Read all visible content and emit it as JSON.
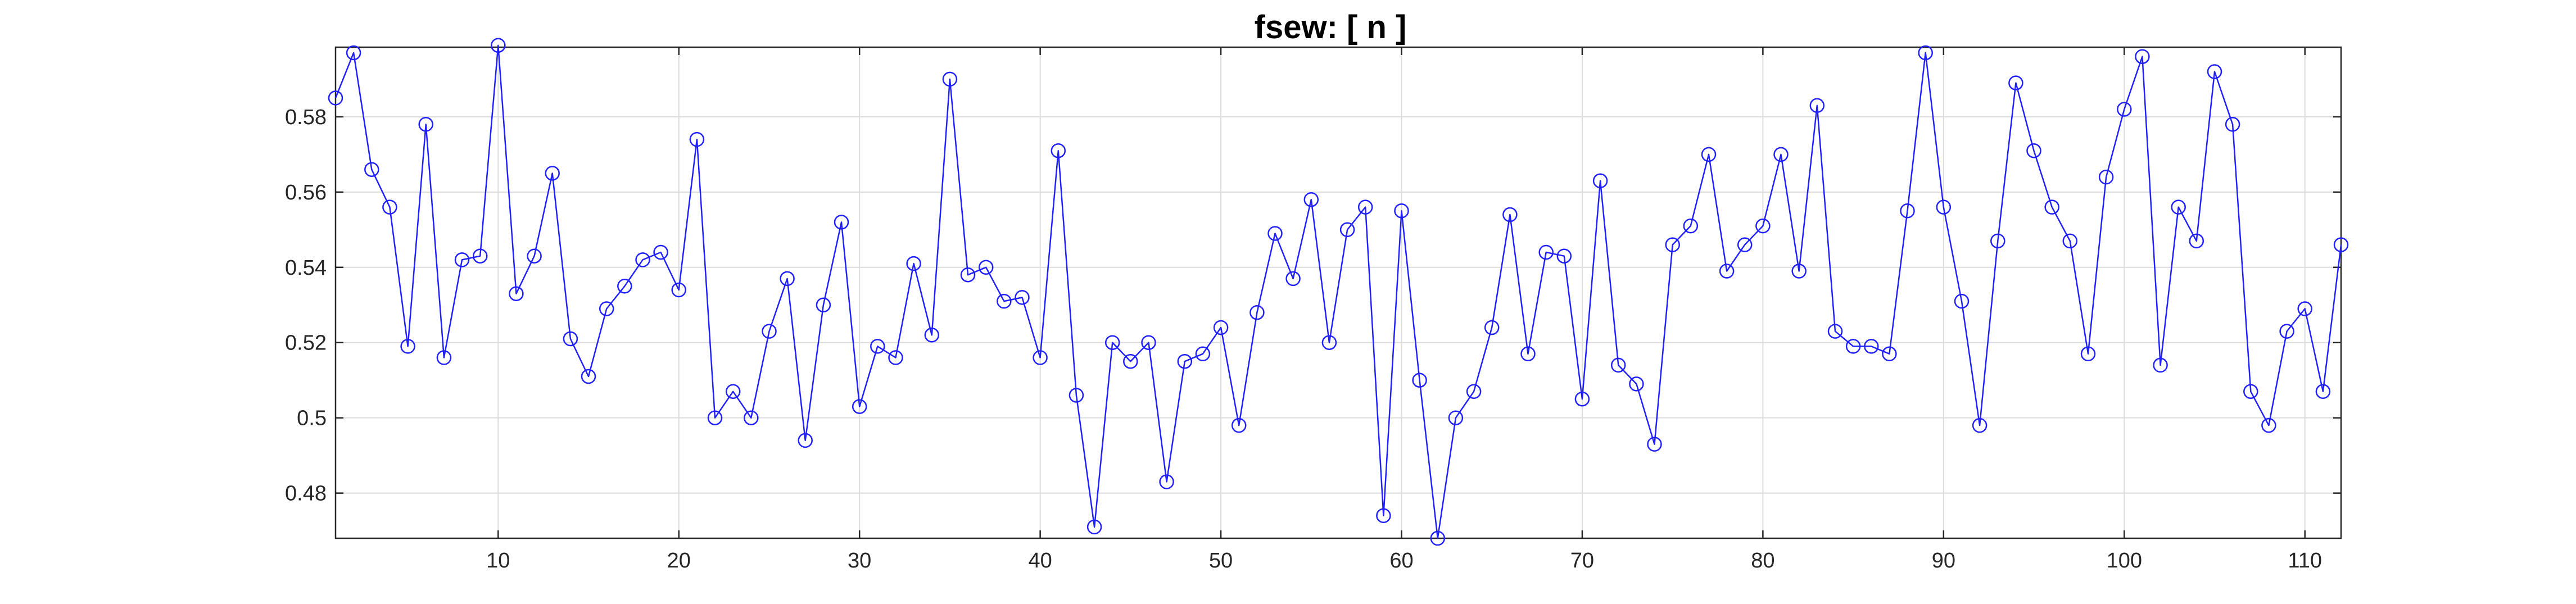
{
  "chart_data": {
    "type": "line",
    "title": "fsew: [ n ]",
    "xlabel": "",
    "ylabel": "",
    "xlim": [
      1,
      112
    ],
    "ylim": [
      0.468,
      0.5985
    ],
    "x_ticks": [
      10,
      20,
      30,
      40,
      50,
      60,
      70,
      80,
      90,
      100,
      110
    ],
    "x_tick_labels": [
      "10",
      "20",
      "30",
      "40",
      "50",
      "60",
      "70",
      "80",
      "90",
      "100",
      "110"
    ],
    "y_ticks": [
      0.48,
      0.5,
      0.52,
      0.54,
      0.56,
      0.58
    ],
    "y_tick_labels": [
      "0.48",
      "0.5",
      "0.52",
      "0.54",
      "0.56",
      "0.58"
    ],
    "grid": true,
    "box": true,
    "marker": "circle",
    "color": "#1f1fff",
    "series": [
      {
        "values": [
          0.585,
          0.597,
          0.566,
          0.556,
          0.519,
          0.578,
          0.516,
          0.542,
          0.543,
          0.599,
          0.533,
          0.543,
          0.565,
          0.521,
          0.511,
          0.529,
          0.535,
          0.542,
          0.544,
          0.534,
          0.574,
          0.5,
          0.507,
          0.5,
          0.523,
          0.537,
          0.494,
          0.53,
          0.552,
          0.503,
          0.519,
          0.516,
          0.541,
          0.522,
          0.59,
          0.538,
          0.54,
          0.531,
          0.532,
          0.516,
          0.571,
          0.506,
          0.471,
          0.52,
          0.515,
          0.52,
          0.483,
          0.515,
          0.517,
          0.524,
          0.498,
          0.528,
          0.549,
          0.537,
          0.558,
          0.52,
          0.55,
          0.556,
          0.474,
          0.555,
          0.51,
          0.468,
          0.5,
          0.507,
          0.524,
          0.554,
          0.517,
          0.544,
          0.543,
          0.505,
          0.563,
          0.514,
          0.509,
          0.493,
          0.546,
          0.551,
          0.57,
          0.539,
          0.546,
          0.551,
          0.57,
          0.539,
          0.583,
          0.523,
          0.519,
          0.519,
          0.517,
          0.555,
          0.597,
          0.556,
          0.531,
          0.498,
          0.547,
          0.589,
          0.571,
          0.556,
          0.547,
          0.517,
          0.564,
          0.582,
          0.596,
          0.514,
          0.556,
          0.547,
          0.592,
          0.578,
          0.507,
          0.498,
          0.523,
          0.529,
          0.507,
          0.546
        ]
      }
    ]
  }
}
